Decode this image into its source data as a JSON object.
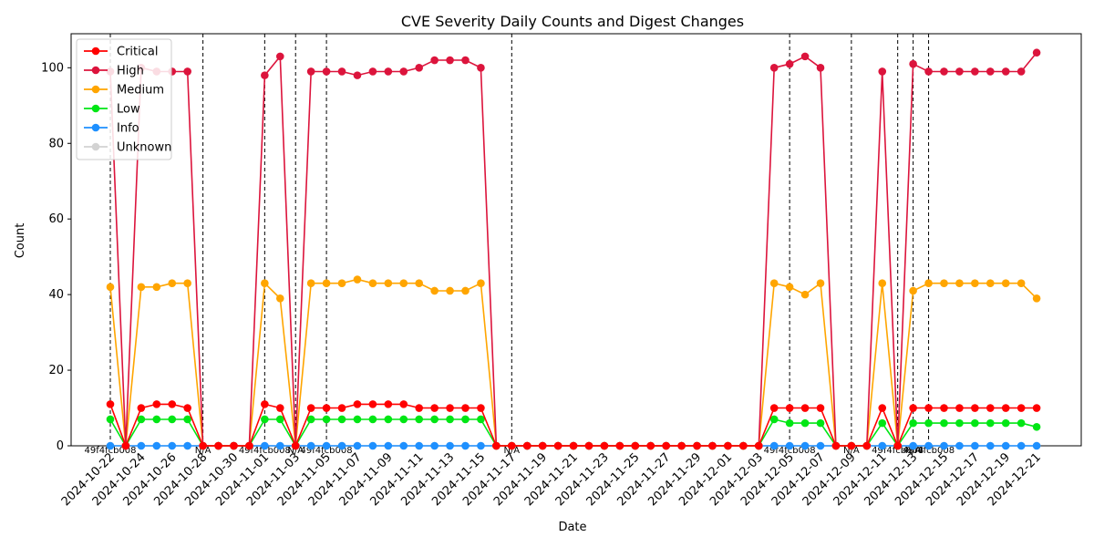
{
  "chart_data": {
    "type": "line",
    "title": "CVE Severity Daily Counts and Digest Changes",
    "xlabel": "Date",
    "ylabel": "Count",
    "ylim": [
      0,
      109
    ],
    "x_tick_step_days": 2,
    "x": [
      "2024-10-22",
      "2024-10-23",
      "2024-10-24",
      "2024-10-25",
      "2024-10-26",
      "2024-10-27",
      "2024-10-28",
      "2024-10-29",
      "2024-10-30",
      "2024-10-31",
      "2024-11-01",
      "2024-11-02",
      "2024-11-03",
      "2024-11-04",
      "2024-11-05",
      "2024-11-06",
      "2024-11-07",
      "2024-11-08",
      "2024-11-09",
      "2024-11-10",
      "2024-11-11",
      "2024-11-12",
      "2024-11-13",
      "2024-11-14",
      "2024-11-15",
      "2024-11-16",
      "2024-11-17",
      "2024-11-18",
      "2024-11-19",
      "2024-11-20",
      "2024-11-21",
      "2024-11-22",
      "2024-11-23",
      "2024-11-24",
      "2024-11-25",
      "2024-11-26",
      "2024-11-27",
      "2024-11-28",
      "2024-11-29",
      "2024-11-30",
      "2024-12-01",
      "2024-12-02",
      "2024-12-03",
      "2024-12-04",
      "2024-12-05",
      "2024-12-06",
      "2024-12-07",
      "2024-12-08",
      "2024-12-09",
      "2024-12-10",
      "2024-12-11",
      "2024-12-12",
      "2024-12-13",
      "2024-12-14",
      "2024-12-15",
      "2024-12-16",
      "2024-12-17",
      "2024-12-18",
      "2024-12-19",
      "2024-12-20",
      "2024-12-21"
    ],
    "series": [
      {
        "name": "Critical",
        "color": "#ff0000",
        "values": [
          11,
          0,
          10,
          11,
          11,
          10,
          0,
          0,
          0,
          0,
          11,
          10,
          0,
          10,
          10,
          10,
          11,
          11,
          11,
          11,
          10,
          10,
          10,
          10,
          10,
          0,
          0,
          0,
          0,
          0,
          0,
          0,
          0,
          0,
          0,
          0,
          0,
          0,
          0,
          0,
          0,
          0,
          0,
          10,
          10,
          10,
          10,
          0,
          0,
          0,
          10,
          0,
          10,
          10,
          10,
          10,
          10,
          10,
          10,
          10,
          10
        ]
      },
      {
        "name": "High",
        "color": "#dc143c",
        "values": [
          99,
          0,
          100,
          99,
          99,
          99,
          0,
          0,
          0,
          0,
          98,
          103,
          0,
          99,
          99,
          99,
          98,
          99,
          99,
          99,
          100,
          102,
          102,
          102,
          100,
          0,
          0,
          0,
          0,
          0,
          0,
          0,
          0,
          0,
          0,
          0,
          0,
          0,
          0,
          0,
          0,
          0,
          0,
          100,
          101,
          103,
          100,
          0,
          0,
          0,
          99,
          0,
          101,
          99,
          99,
          99,
          99,
          99,
          99,
          99,
          104
        ]
      },
      {
        "name": "Medium",
        "color": "#ffa500",
        "values": [
          42,
          0,
          42,
          42,
          43,
          43,
          0,
          0,
          0,
          0,
          43,
          39,
          0,
          43,
          43,
          43,
          44,
          43,
          43,
          43,
          43,
          41,
          41,
          41,
          43,
          0,
          0,
          0,
          0,
          0,
          0,
          0,
          0,
          0,
          0,
          0,
          0,
          0,
          0,
          0,
          0,
          0,
          0,
          43,
          42,
          40,
          43,
          0,
          0,
          0,
          43,
          0,
          41,
          43,
          43,
          43,
          43,
          43,
          43,
          43,
          39
        ]
      },
      {
        "name": "Low",
        "color": "#00e614",
        "values": [
          7,
          0,
          7,
          7,
          7,
          7,
          0,
          0,
          0,
          0,
          7,
          7,
          0,
          7,
          7,
          7,
          7,
          7,
          7,
          7,
          7,
          7,
          7,
          7,
          7,
          0,
          0,
          0,
          0,
          0,
          0,
          0,
          0,
          0,
          0,
          0,
          0,
          0,
          0,
          0,
          0,
          0,
          0,
          7,
          6,
          6,
          6,
          0,
          0,
          0,
          6,
          0,
          6,
          6,
          6,
          6,
          6,
          6,
          6,
          6,
          5
        ]
      },
      {
        "name": "Info",
        "color": "#1e90ff",
        "values": [
          0,
          0,
          0,
          0,
          0,
          0,
          0,
          0,
          0,
          0,
          0,
          0,
          0,
          0,
          0,
          0,
          0,
          0,
          0,
          0,
          0,
          0,
          0,
          0,
          0,
          0,
          0,
          0,
          0,
          0,
          0,
          0,
          0,
          0,
          0,
          0,
          0,
          0,
          0,
          0,
          0,
          0,
          0,
          0,
          0,
          0,
          0,
          0,
          0,
          0,
          0,
          0,
          0,
          0,
          0,
          0,
          0,
          0,
          0,
          0,
          0
        ]
      },
      {
        "name": "Unknown",
        "color": "#d3d3d3",
        "values": [
          0,
          0,
          0,
          0,
          0,
          0,
          0,
          0,
          0,
          0,
          0,
          0,
          0,
          0,
          0,
          0,
          0,
          0,
          0,
          0,
          0,
          0,
          0,
          0,
          0,
          0,
          0,
          0,
          0,
          0,
          0,
          0,
          0,
          0,
          0,
          0,
          0,
          0,
          0,
          0,
          0,
          0,
          0,
          0,
          0,
          0,
          0,
          0,
          0,
          0,
          0,
          0,
          0,
          0,
          0,
          0,
          0,
          0,
          0,
          0,
          0
        ]
      }
    ],
    "digest_changes": [
      {
        "date": "2024-10-22",
        "label": "49f4fcb008"
      },
      {
        "date": "2024-10-28",
        "label": "N/A"
      },
      {
        "date": "2024-11-01",
        "label": "49f4fcb008"
      },
      {
        "date": "2024-11-03",
        "label": "N/A"
      },
      {
        "date": "2024-11-05",
        "label": "49f4fcb008"
      },
      {
        "date": "2024-11-17",
        "label": "N/A"
      },
      {
        "date": "2024-12-05",
        "label": "49f4fcb008"
      },
      {
        "date": "2024-12-09",
        "label": "N/A"
      },
      {
        "date": "2024-12-12",
        "label": "49f4fcb008"
      },
      {
        "date": "2024-12-13",
        "label": "N/A"
      },
      {
        "date": "2024-12-14",
        "label": "49f4fcb008"
      }
    ],
    "legend_position": "top-left",
    "grid": false
  }
}
